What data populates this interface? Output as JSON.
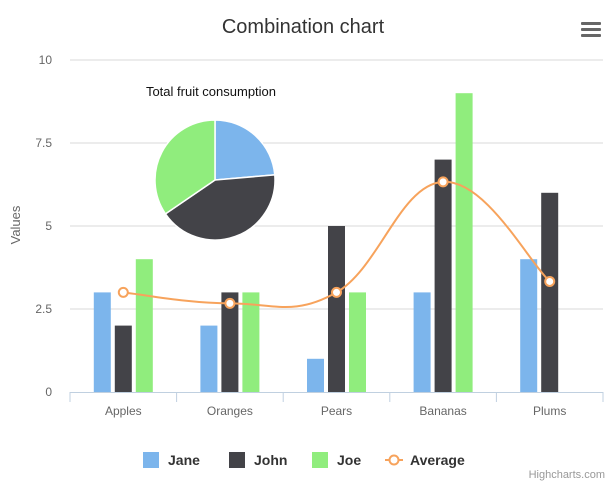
{
  "chart_data": {
    "type": "combination",
    "title": "Combination chart",
    "ylabel": "Values",
    "xlabel": "",
    "ylim": [
      0,
      10
    ],
    "yticks": [
      {
        "value": 0,
        "label": "0"
      },
      {
        "value": 2.5,
        "label": "2.5"
      },
      {
        "value": 5,
        "label": "5"
      },
      {
        "value": 7.5,
        "label": "7.5"
      },
      {
        "value": 10,
        "label": "10"
      }
    ],
    "categories": [
      "Apples",
      "Oranges",
      "Pears",
      "Bananas",
      "Plums"
    ],
    "series": [
      {
        "name": "Jane",
        "type": "column",
        "color": "#7cb5ec",
        "values": [
          3,
          2,
          1,
          3,
          4
        ]
      },
      {
        "name": "John",
        "type": "column",
        "color": "#434348",
        "values": [
          2,
          3,
          5,
          7,
          6
        ]
      },
      {
        "name": "Joe",
        "type": "column",
        "color": "#90ed7d",
        "values": [
          4,
          3,
          3,
          9,
          0
        ]
      },
      {
        "name": "Average",
        "type": "spline",
        "color": "#f7a35c",
        "values": [
          3,
          2.67,
          3,
          6.33,
          3.33
        ]
      }
    ],
    "pie": {
      "title": "Total fruit consumption",
      "slices": [
        {
          "name": "Jane",
          "value": 13,
          "color": "#7cb5ec"
        },
        {
          "name": "John",
          "value": 23,
          "color": "#434348"
        },
        {
          "name": "Joe",
          "value": 19,
          "color": "#90ed7d"
        }
      ]
    },
    "grid": true,
    "legend_position": "bottom"
  },
  "ui": {
    "menu_icon": "hamburger-menu-icon",
    "credits": "Highcharts.com"
  }
}
